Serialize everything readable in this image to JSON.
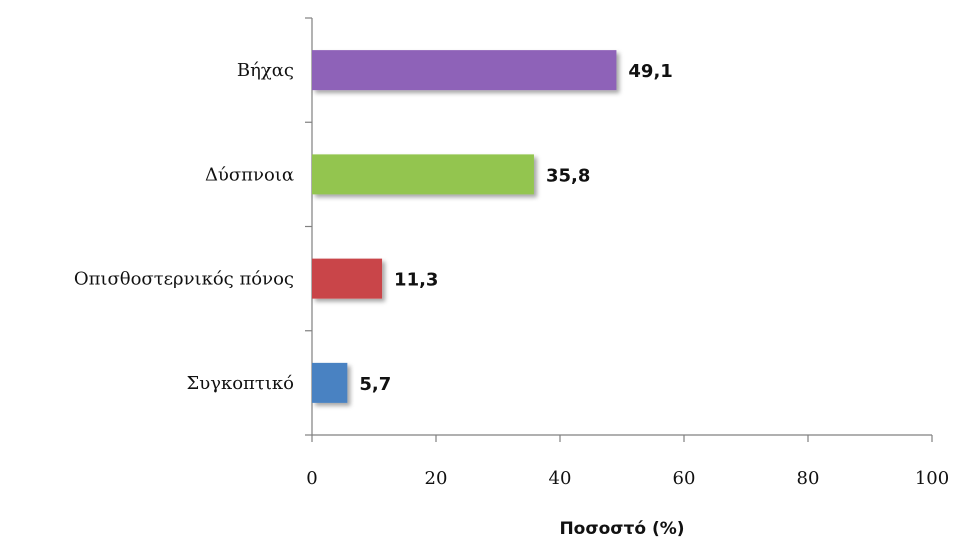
{
  "chart_data": {
    "type": "bar",
    "orientation": "horizontal",
    "categories": [
      "Βήχας",
      "Δύσπνοια",
      "Οπισθοστερνικός πόνος",
      "Συγκοπτικό"
    ],
    "values": [
      49.1,
      35.8,
      11.3,
      5.7
    ],
    "value_labels": [
      "49,1",
      "35,8",
      "11,3",
      "5,7"
    ],
    "colors": [
      "#8e62b8",
      "#93c550",
      "#c9454a",
      "#4a82c2"
    ],
    "xlabel": "Ποσοστό (%)",
    "xlim": [
      0,
      100
    ],
    "xticks": [
      0,
      20,
      40,
      60,
      80,
      100
    ],
    "grid": false,
    "legend": "none"
  }
}
